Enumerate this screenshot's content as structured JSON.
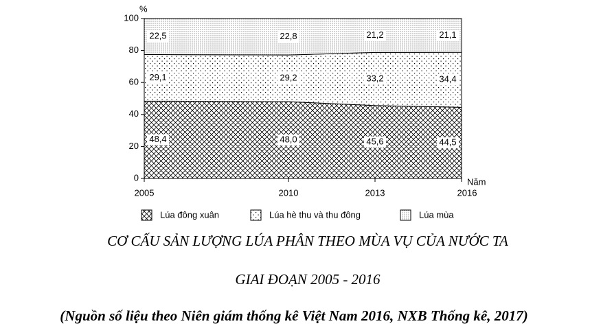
{
  "chart_data": {
    "type": "stacked-area",
    "title": "CƠ CẤU SẢN LƯỢNG LÚA PHÂN THEO MÙA VỤ CỦA NƯỚC TA",
    "subtitle": "GIAI ĐOẠN 2005 - 2016",
    "source": "(Nguồn số liệu theo Niên giám thống kê Việt Nam 2016, NXB Thống kê, 2017)",
    "y_label": "%",
    "x_label": "Năm",
    "x": [
      2005,
      2010,
      2013,
      2016
    ],
    "xlim": [
      2005,
      2016
    ],
    "xticks": [
      2005,
      2010,
      2013,
      2016
    ],
    "ylim": [
      0,
      100
    ],
    "yticks": [
      0,
      20,
      40,
      60,
      80,
      100
    ],
    "series": [
      {
        "name": "Lúa đông xuân",
        "pattern": "crosshatch",
        "values": [
          48.4,
          48.0,
          45.6,
          44.5
        ],
        "value_labels": [
          "48,4",
          "48,0",
          "45,6",
          "44,5"
        ]
      },
      {
        "name": "Lúa hè thu và thu đông",
        "pattern": "dots",
        "values": [
          29.1,
          29.2,
          33.2,
          34.4
        ],
        "value_labels": [
          "29,1",
          "29,2",
          "33,2",
          "34,4"
        ]
      },
      {
        "name": "Lúa mùa",
        "pattern": "dense-dots",
        "values": [
          22.5,
          22.8,
          21.2,
          21.1
        ],
        "value_labels": [
          "22,5",
          "22,8",
          "21,2",
          "21,1"
        ]
      }
    ]
  }
}
